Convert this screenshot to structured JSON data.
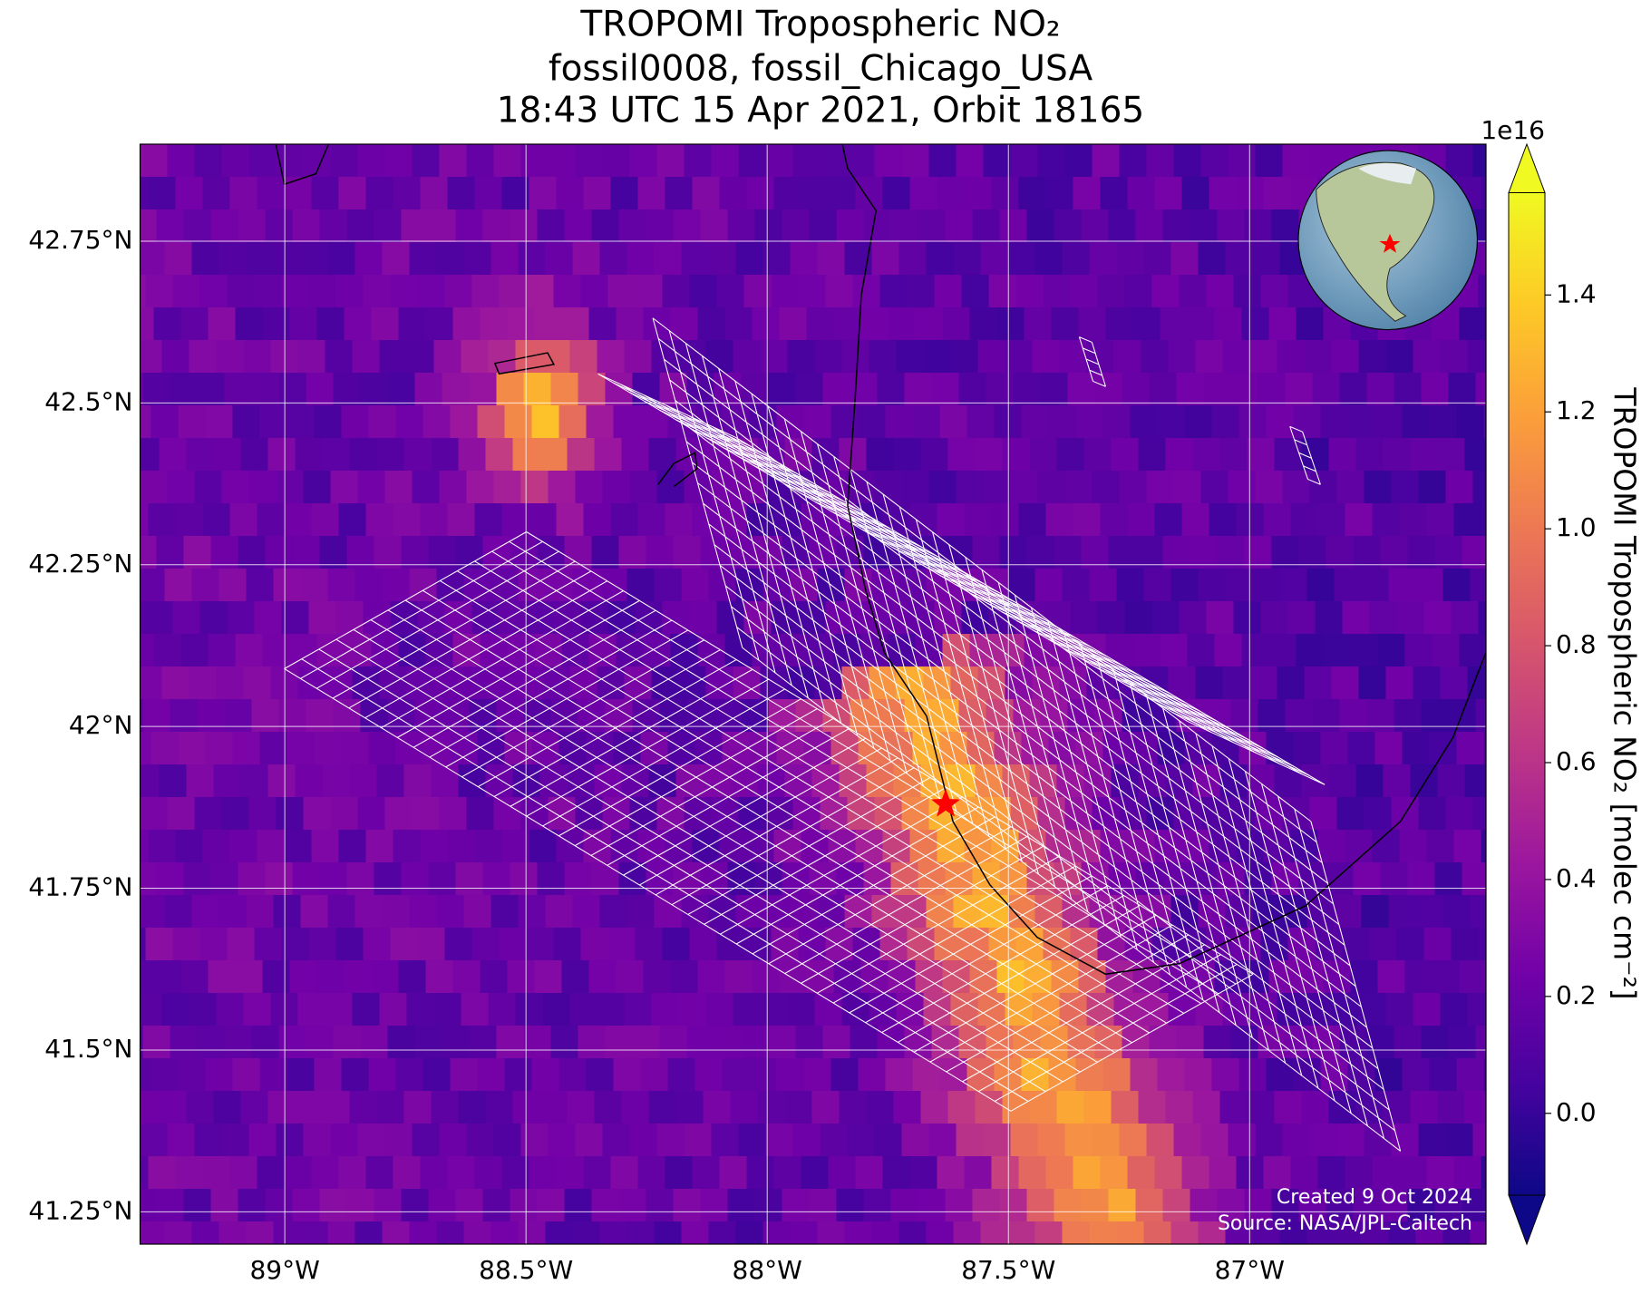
{
  "chart_data": {
    "type": "map",
    "title": "TROPOMI Tropospheric NO₂",
    "subtitle": [
      "fossil0008, fossil_Chicago_USA",
      "18:43 UTC 15 Apr 2021, Orbit 18165"
    ],
    "xlim": [
      -89.3,
      -86.51
    ],
    "ylim": [
      41.2,
      42.9
    ],
    "xticks": [
      {
        "value": -89,
        "label": "89°W"
      },
      {
        "value": -88.5,
        "label": "88.5°W"
      },
      {
        "value": -88,
        "label": "88°W"
      },
      {
        "value": -87.5,
        "label": "87.5°W"
      },
      {
        "value": -87,
        "label": "87°W"
      }
    ],
    "yticks": [
      {
        "value": 41.25,
        "label": "41.25°N"
      },
      {
        "value": 41.5,
        "label": "41.5°N"
      },
      {
        "value": 41.75,
        "label": "41.75°N"
      },
      {
        "value": 42,
        "label": "42°N"
      },
      {
        "value": 42.25,
        "label": "42.25°N"
      },
      {
        "value": 42.5,
        "label": "42.5°N"
      },
      {
        "value": 42.75,
        "label": "42.75°N"
      }
    ],
    "grid": true,
    "grid_color": "#ffffff",
    "marker": {
      "lon": -87.63,
      "lat": 41.88,
      "color": "#ff0000"
    },
    "colorbar": {
      "label": "TROPOMI Tropospheric NO₂ [molec cm⁻²]",
      "multiplier": "1e16",
      "colormap": "plasma",
      "clim": [
        -0.14,
        1.575
      ],
      "ticks": [
        {
          "value": 0,
          "label": "0.0"
        },
        0.2,
        0.4,
        0.6,
        0.8,
        {
          "value": 1,
          "label": "1.0"
        },
        1.2,
        1.4
      ]
    },
    "credits": [
      "Created 9 Oct 2024",
      "Source: NASA/JPL-Caltech"
    ]
  }
}
